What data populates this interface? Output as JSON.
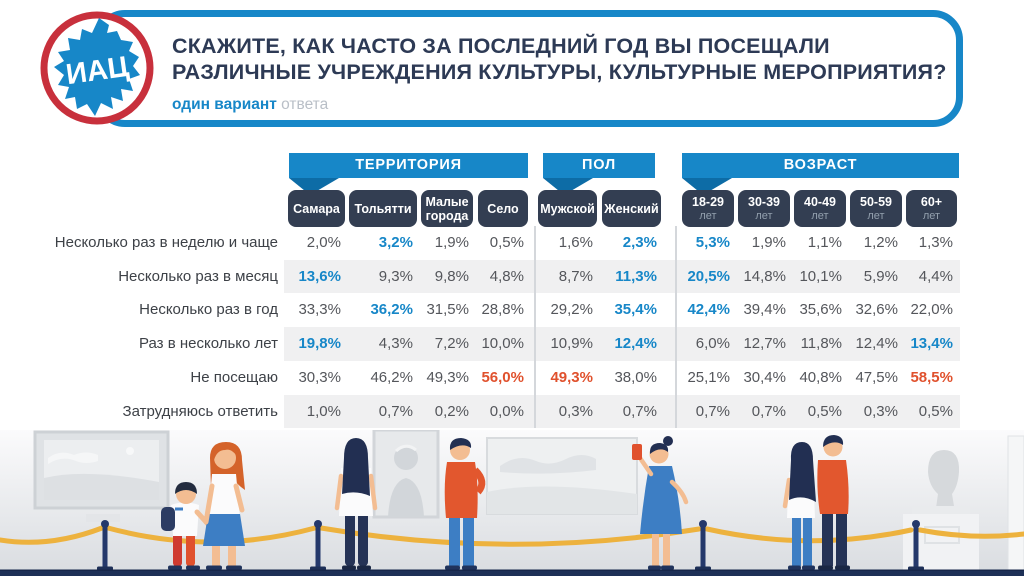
{
  "header": {
    "logo_text": "ИАЦ",
    "title_line1": "СКАЖИТЕ, КАК ЧАСТО ЗА ПОСЛЕДНИЙ ГОД ВЫ ПОСЕЩАЛИ",
    "title_line2": "РАЗЛИЧНЫЕ УЧРЕЖДЕНИЯ КУЛЬТУРЫ, КУЛЬТУРНЫЕ МЕРОПРИЯТИЯ?",
    "subtitle_accent": "один вариант",
    "subtitle_note": "ответа"
  },
  "colors": {
    "accent_blue": "#1787c8",
    "accent_dark_blue": "#0d6ca6",
    "accent_orange": "#e0512d",
    "header_pill_navy": "#333e52",
    "title_navy": "#2d3a55",
    "logo_ring_red": "#c8303c",
    "row_stripe_gray": "#f0f0f1",
    "rope_yellow": "#edb23e"
  },
  "chart_data": {
    "type": "table",
    "title": "СКАЖИТЕ, КАК ЧАСТО ЗА ПОСЛЕДНИЙ ГОД ВЫ ПОСЕЩАЛИ РАЗЛИЧНЫЕ УЧРЕЖДЕНИЯ КУЛЬТУРЫ, КУЛЬТУРНЫЕ МЕРОПРИЯТИЯ?",
    "subtitle": "один вариант ответа",
    "unit": "%",
    "decimal_separator": ",",
    "column_groups": [
      {
        "label": "ТЕРРИТОРИЯ",
        "columns": [
          {
            "label": "Самара"
          },
          {
            "label": "Тольятти"
          },
          {
            "label": "Малые города"
          },
          {
            "label": "Село"
          }
        ]
      },
      {
        "label": "ПОЛ",
        "columns": [
          {
            "label": "Мужской"
          },
          {
            "label": "Женский"
          }
        ]
      },
      {
        "label": "ВОЗРАСТ",
        "columns": [
          {
            "label": "18-29",
            "sub": "лет"
          },
          {
            "label": "30-39",
            "sub": "лет"
          },
          {
            "label": "40-49",
            "sub": "лет"
          },
          {
            "label": "50-59",
            "sub": "лет"
          },
          {
            "label": "60+",
            "sub": "лет"
          }
        ]
      }
    ],
    "rows": [
      {
        "label": "Несколько раз в неделю и чаще",
        "values": [
          2.0,
          3.2,
          1.9,
          0.5,
          1.6,
          2.3,
          5.3,
          1.9,
          1.1,
          1.2,
          1.3
        ],
        "highlight": [
          "",
          "blue",
          "",
          "",
          "",
          "blue",
          "blue",
          "",
          "",
          "",
          ""
        ]
      },
      {
        "label": "Несколько раз в месяц",
        "values": [
          13.6,
          9.3,
          9.8,
          4.8,
          8.7,
          11.3,
          20.5,
          14.8,
          10.1,
          5.9,
          4.4
        ],
        "highlight": [
          "blue",
          "",
          "",
          "",
          "",
          "blue",
          "blue",
          "",
          "",
          "",
          ""
        ]
      },
      {
        "label": "Несколько раз в год",
        "values": [
          33.3,
          36.2,
          31.5,
          28.8,
          29.2,
          35.4,
          42.4,
          39.4,
          35.6,
          32.6,
          22.0
        ],
        "highlight": [
          "",
          "blue",
          "",
          "",
          "",
          "blue",
          "blue",
          "",
          "",
          "",
          ""
        ]
      },
      {
        "label": "Раз в несколько лет",
        "values": [
          19.8,
          4.3,
          7.2,
          10.0,
          10.9,
          12.4,
          6.0,
          12.7,
          11.8,
          12.4,
          13.4
        ],
        "highlight": [
          "blue",
          "",
          "",
          "",
          "",
          "blue",
          "",
          "",
          "",
          "",
          "blue"
        ]
      },
      {
        "label": "Не посещаю",
        "values": [
          30.3,
          46.2,
          49.3,
          56.0,
          49.3,
          38.0,
          25.1,
          30.4,
          40.8,
          47.5,
          58.5
        ],
        "highlight": [
          "",
          "",
          "",
          "orange",
          "orange",
          "",
          "",
          "",
          "",
          "",
          "orange"
        ]
      },
      {
        "label": "Затрудняюсь ответить",
        "values": [
          1.0,
          0.7,
          0.2,
          0.0,
          0.3,
          0.7,
          0.7,
          0.7,
          0.5,
          0.3,
          0.5
        ],
        "highlight": [
          "",
          "",
          "",
          "",
          "",
          "",
          "",
          "",
          "",
          "",
          ""
        ]
      }
    ]
  }
}
